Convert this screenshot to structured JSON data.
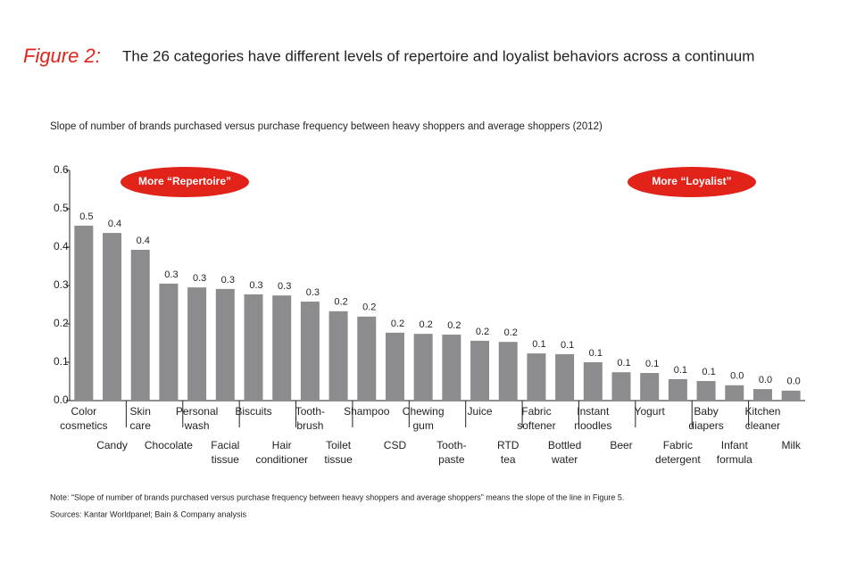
{
  "chart_data": {
    "type": "bar",
    "title_prefix": "Figure 2:",
    "title": "The 26 categories have different levels of repertoire and loyalist behaviors across a continuum",
    "subtitle": "Slope of number of brands purchased versus purchase frequency between heavy shoppers and average shoppers (2012)",
    "annotations": [
      "More “Repertoire”",
      "More “Loyalist”"
    ],
    "annotation_color": "#e2231a",
    "categories": [
      [
        "Color",
        "cosmetics"
      ],
      [
        "Candy"
      ],
      [
        "Skin",
        "care"
      ],
      [
        "Chocolate"
      ],
      [
        "Personal",
        "wash"
      ],
      [
        "Facial",
        "tissue"
      ],
      [
        "Biscuits"
      ],
      [
        "Hair",
        "conditioner"
      ],
      [
        "Tooth-",
        "brush"
      ],
      [
        "Toilet",
        "tissue"
      ],
      [
        "Shampoo"
      ],
      [
        "CSD"
      ],
      [
        "Chewing",
        "gum"
      ],
      [
        "Tooth-",
        "paste"
      ],
      [
        "Juice"
      ],
      [
        "RTD",
        "tea"
      ],
      [
        "Fabric",
        "softener"
      ],
      [
        "Bottled",
        "water"
      ],
      [
        "Instant",
        "noodles"
      ],
      [
        "Beer"
      ],
      [
        "Yogurt"
      ],
      [
        "Fabric",
        "detergent"
      ],
      [
        "Baby",
        "diapers"
      ],
      [
        "Infant",
        "formula"
      ],
      [
        "Kitchen",
        "cleaner"
      ],
      [
        "Milk"
      ]
    ],
    "values": [
      0.456,
      0.437,
      0.393,
      0.305,
      0.295,
      0.291,
      0.277,
      0.274,
      0.258,
      0.233,
      0.219,
      0.177,
      0.174,
      0.172,
      0.156,
      0.153,
      0.123,
      0.121,
      0.1,
      0.074,
      0.072,
      0.056,
      0.051,
      0.04,
      0.03,
      0.026
    ],
    "value_labels": [
      "0.5",
      "0.4",
      "0.4",
      "0.3",
      "0.3",
      "0.3",
      "0.3",
      "0.3",
      "0.3",
      "0.2",
      "0.2",
      "0.2",
      "0.2",
      "0.2",
      "0.2",
      "0.2",
      "0.1",
      "0.1",
      "0.1",
      "0.1",
      "0.1",
      "0.1",
      "0.1",
      "0.0",
      "0.0",
      "0.0"
    ],
    "color": "#8c8c8e",
    "ylim": [
      0,
      0.6
    ],
    "yticks": [
      {
        "value": 0,
        "label": "0.0"
      },
      0.1,
      0.2,
      0.3,
      0.4,
      0.5,
      0.6
    ],
    "note": "Note: “Slope of number of brands purchased versus purchase frequency between heavy shoppers and average shoppers” means the slope of the line in Figure 5.",
    "source": "Sources: Kantar Worldpanel; Bain & Company analysis"
  }
}
